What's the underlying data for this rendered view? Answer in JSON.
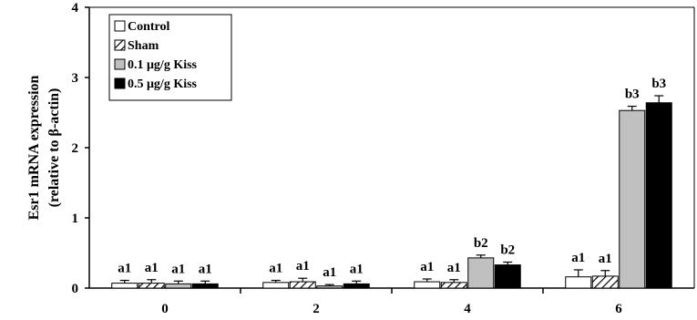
{
  "chart_data": {
    "type": "bar",
    "title": "",
    "xlabel": "",
    "ylabel": [
      "Esr1 mRNA expression",
      "(relative to β-actin)"
    ],
    "ylim": [
      0,
      4
    ],
    "yticks": [
      0,
      1,
      2,
      3,
      4
    ],
    "categories": [
      "0",
      "2",
      "4",
      "6"
    ],
    "legend_position": "top-left",
    "series": [
      {
        "name": "Control",
        "fill": "white",
        "values": [
          0.07,
          0.08,
          0.09,
          0.16
        ],
        "errors": [
          0.04,
          0.03,
          0.04,
          0.1
        ],
        "labels": [
          "a1",
          "a1",
          "a1",
          "a1"
        ]
      },
      {
        "name": "Sham",
        "fill": "hatched",
        "values": [
          0.07,
          0.09,
          0.08,
          0.17
        ],
        "errors": [
          0.05,
          0.05,
          0.04,
          0.08
        ],
        "labels": [
          "a1",
          "a1",
          "a1",
          "a1"
        ]
      },
      {
        "name": "0.1 μg/g Kiss",
        "fill": "#c0c0c0",
        "values": [
          0.06,
          0.03,
          0.43,
          2.53
        ],
        "errors": [
          0.04,
          0.02,
          0.04,
          0.06
        ],
        "labels": [
          "a1",
          "a1",
          "b2",
          "b3"
        ]
      },
      {
        "name": "0.5 μg/g Kiss",
        "fill": "#000000",
        "values": [
          0.06,
          0.06,
          0.33,
          2.64
        ],
        "errors": [
          0.04,
          0.04,
          0.04,
          0.1
        ],
        "labels": [
          "a1",
          "a1",
          "b2",
          "b3"
        ]
      }
    ]
  }
}
